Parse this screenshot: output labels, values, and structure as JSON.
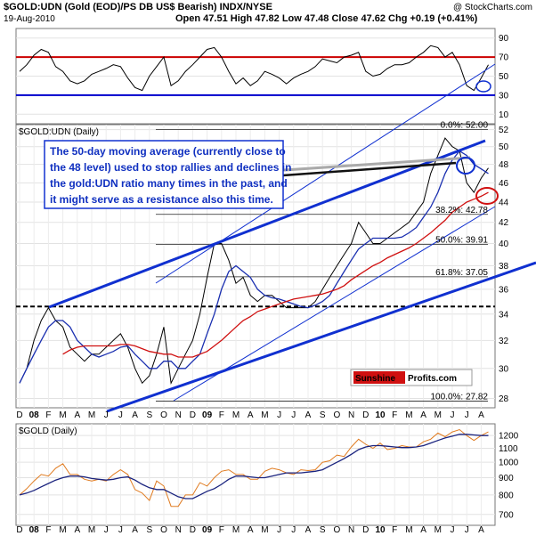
{
  "header": {
    "title": "$GOLD:UDN (Gold (EOD)/PS DB US$ Bearish) INDX/NYSE",
    "source": "@ StockCharts.com",
    "date": "19-Aug-2010",
    "quote": "Open 47.51 High 47.82 Low 47.48 Close 47.62 Chg +0.19 (+0.41%)"
  },
  "chart_data": [
    {
      "type": "line",
      "ylim": [
        0,
        100
      ],
      "yticks": [
        10,
        30,
        50,
        70,
        90
      ],
      "grid": true,
      "levels": [
        {
          "value": 70,
          "color": "#cc0000"
        },
        {
          "value": 30,
          "color": "#0000cc"
        }
      ],
      "series": [
        {
          "color": "#000000",
          "values": [
            55,
            62,
            72,
            78,
            75,
            60,
            55,
            45,
            42,
            45,
            52,
            55,
            58,
            62,
            60,
            48,
            38,
            35,
            50,
            60,
            70,
            40,
            45,
            55,
            62,
            70,
            78,
            80,
            70,
            55,
            42,
            48,
            40,
            45,
            55,
            52,
            48,
            42,
            48,
            52,
            55,
            60,
            68,
            66,
            64,
            70,
            72,
            75,
            55,
            50,
            52,
            58,
            62,
            62,
            64,
            70,
            75,
            82,
            80,
            70,
            75,
            62,
            40,
            35,
            48,
            62
          ]
        }
      ]
    },
    {
      "type": "line",
      "title": "$GOLD:UDN (Daily)",
      "log_scale": true,
      "ylim": [
        27.4,
        52.6
      ],
      "yticks": [
        28,
        30,
        32,
        34,
        36,
        38,
        40,
        42,
        44,
        46,
        48,
        50,
        52
      ],
      "grid": true,
      "categories": [
        "D",
        null,
        "08",
        null,
        "F",
        null,
        "M",
        null,
        "A",
        null,
        "M",
        null,
        "J",
        null,
        "J",
        null,
        "A",
        null,
        "S",
        null,
        "O",
        null,
        "N",
        null,
        "D",
        null,
        "09",
        null,
        "F",
        null,
        "M",
        null,
        "A",
        null,
        "M",
        null,
        "J",
        null,
        "J",
        null,
        "A",
        null,
        "S",
        null,
        "O",
        null,
        "N",
        null,
        "D",
        null,
        "10",
        null,
        "F",
        null,
        "M",
        null,
        "A",
        null,
        "M",
        null,
        "J",
        null,
        "J",
        null,
        "A",
        null
      ],
      "series": [
        {
          "color": "#000000",
          "values": [
            29,
            30,
            32,
            33.5,
            34.5,
            33.5,
            33,
            31.5,
            31,
            30.5,
            31,
            31,
            31.5,
            32,
            32.5,
            31.5,
            30,
            29,
            29.5,
            31,
            33,
            29,
            30,
            31,
            32,
            34,
            37,
            40,
            40,
            38.5,
            36.5,
            37,
            35.5,
            35,
            35.5,
            35.5,
            35,
            34.5,
            34.5,
            34.5,
            34.5,
            35,
            36,
            37,
            38,
            39,
            40,
            42,
            41,
            40,
            40,
            40.5,
            41,
            41.5,
            42,
            43,
            44,
            47,
            49,
            51,
            50,
            49.5,
            46,
            45,
            46.5,
            47.6
          ]
        },
        {
          "color": "#1a2fb0",
          "values": [
            29,
            30,
            31,
            32,
            33,
            33.5,
            33.5,
            33,
            32,
            31.5,
            31,
            30.8,
            31,
            31.2,
            31.5,
            31.6,
            31,
            30.5,
            30,
            30,
            30.5,
            30.5,
            30,
            30,
            30.5,
            31,
            32.5,
            34,
            36,
            37.5,
            38,
            37.5,
            37,
            36,
            35.5,
            35.3,
            35.2,
            35,
            34.8,
            34.6,
            34.5,
            34.7,
            35,
            35.5,
            36.5,
            37.5,
            38.5,
            39.5,
            40,
            40.5,
            40.5,
            40.5,
            40.5,
            40.6,
            41,
            41.5,
            42.5,
            43.5,
            45,
            47,
            48.5,
            49.5,
            49,
            48,
            47.5,
            47
          ]
        },
        {
          "color": "#d01010",
          "values": [
            null,
            null,
            null,
            null,
            null,
            null,
            31,
            31.3,
            31.5,
            31.6,
            31.6,
            31.6,
            31.6,
            31.6,
            31.7,
            31.7,
            31.6,
            31.4,
            31.2,
            31.1,
            31,
            31,
            30.8,
            30.8,
            30.8,
            31,
            31.2,
            31.6,
            32,
            32.5,
            33,
            33.5,
            33.8,
            34.2,
            34.4,
            34.6,
            34.8,
            35,
            35.2,
            35.3,
            35.4,
            35.5,
            35.6,
            35.8,
            36,
            36.3,
            36.8,
            37.2,
            37.6,
            38,
            38.3,
            38.7,
            39,
            39.3,
            39.6,
            40,
            40.5,
            41,
            41.6,
            42.2,
            43,
            43.5,
            44,
            44.3,
            44.6,
            45
          ]
        }
      ],
      "dashed_level": 34.6,
      "fib_levels": [
        {
          "value": 52.0,
          "label": "0.0%: 52.00"
        },
        {
          "value": 42.78,
          "label": "38.2%: 42.78"
        },
        {
          "value": 39.91,
          "label": "50.0%: 39.91"
        },
        {
          "value": 37.05,
          "label": "61.8%: 37.05"
        },
        {
          "value": 27.82,
          "label": "100.0%: 27.82"
        }
      ],
      "annotation": [
        "The 50-day moving average (currently close to",
        "the 48 level) used to stop rallies and declines in",
        "the gold:UDN ratio many times in the past, and",
        "it might serve as a resistance also this time."
      ],
      "logo": [
        "Sunshine",
        "Profits.com"
      ]
    },
    {
      "type": "line",
      "title": "$GOLD (Daily)",
      "log_scale": true,
      "ylim": [
        650,
        1300
      ],
      "yticks": [
        700,
        800,
        900,
        1000,
        1100,
        1200
      ],
      "grid": true,
      "categories": [
        "D",
        null,
        "08",
        null,
        "F",
        null,
        "M",
        null,
        "A",
        null,
        "M",
        null,
        "J",
        null,
        "J",
        null,
        "A",
        null,
        "S",
        null,
        "O",
        null,
        "N",
        null,
        "D",
        null,
        "09",
        null,
        "F",
        null,
        "M",
        null,
        "A",
        null,
        "M",
        null,
        "J",
        null,
        "J",
        null,
        "A",
        null,
        "S",
        null,
        "O",
        null,
        "N",
        null,
        "D",
        null,
        "10",
        null,
        "F",
        null,
        "M",
        null,
        "A",
        null,
        "M",
        null,
        "J",
        null,
        "J",
        null,
        "A",
        null
      ],
      "series": [
        {
          "color": "#e07b20",
          "values": [
            800,
            835,
            880,
            920,
            910,
            960,
            990,
            920,
            920,
            890,
            880,
            890,
            880,
            920,
            950,
            920,
            830,
            810,
            770,
            880,
            850,
            740,
            740,
            800,
            800,
            870,
            850,
            900,
            940,
            950,
            920,
            920,
            890,
            890,
            940,
            960,
            950,
            930,
            920,
            950,
            945,
            950,
            1000,
            1010,
            1050,
            1040,
            1110,
            1170,
            1130,
            1100,
            1140,
            1090,
            1100,
            1120,
            1110,
            1110,
            1150,
            1170,
            1220,
            1190,
            1230,
            1250,
            1200,
            1160,
            1200,
            1230
          ]
        },
        {
          "color": "#1a237e",
          "values": [
            800,
            810,
            825,
            845,
            865,
            885,
            900,
            910,
            910,
            905,
            895,
            890,
            885,
            890,
            900,
            905,
            885,
            860,
            840,
            830,
            830,
            810,
            790,
            780,
            780,
            800,
            820,
            835,
            860,
            890,
            910,
            910,
            905,
            900,
            900,
            910,
            920,
            930,
            930,
            930,
            935,
            940,
            950,
            975,
            1000,
            1025,
            1055,
            1090,
            1110,
            1120,
            1120,
            1115,
            1110,
            1105,
            1105,
            1110,
            1120,
            1140,
            1160,
            1180,
            1195,
            1210,
            1210,
            1205,
            1200,
            1200
          ]
        }
      ]
    }
  ]
}
